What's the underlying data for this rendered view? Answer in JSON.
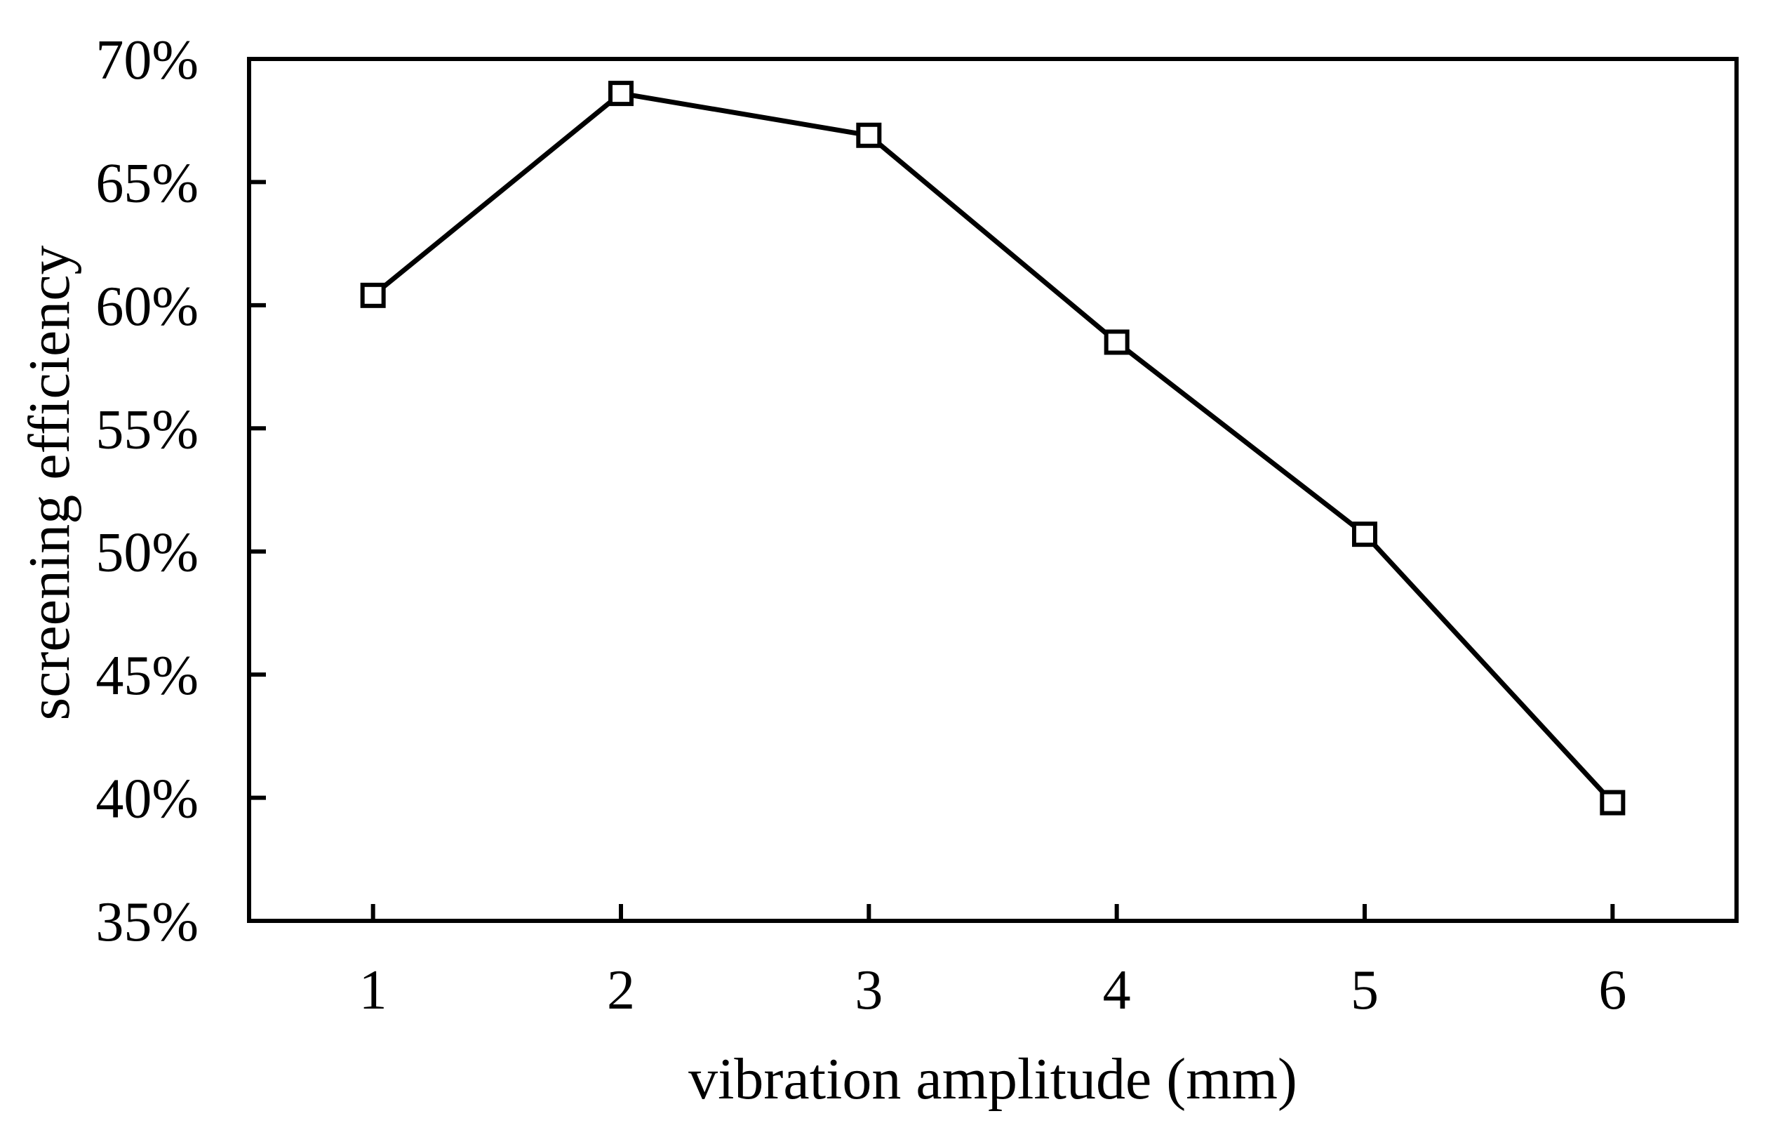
{
  "chart_data": {
    "type": "line",
    "title": "",
    "xlabel": "vibration amplitude (mm)",
    "ylabel": "screening efficiency",
    "x": [
      1,
      2,
      3,
      4,
      5,
      6
    ],
    "x_tick_labels": [
      "1",
      "2",
      "3",
      "4",
      "5",
      "6"
    ],
    "xlim": [
      0.5,
      6.5
    ],
    "ylim": [
      0.35,
      0.7
    ],
    "y_ticks": [
      0.35,
      0.4,
      0.45,
      0.5,
      0.55,
      0.6,
      0.65,
      0.7
    ],
    "y_tick_labels": [
      "35%",
      "40%",
      "45%",
      "50%",
      "55%",
      "60%",
      "65%",
      "70%"
    ],
    "grid": false,
    "legend": "none",
    "series": [
      {
        "name": "screening efficiency",
        "marker": "open-square",
        "color": "#000000",
        "values": [
          0.604,
          0.686,
          0.669,
          0.585,
          0.507,
          0.398
        ]
      }
    ]
  }
}
